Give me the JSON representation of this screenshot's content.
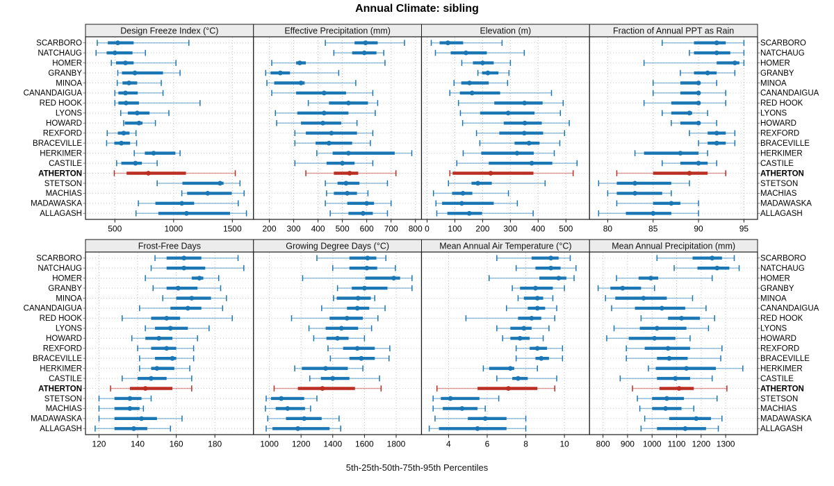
{
  "title": "Annual Climate: sibling",
  "xlabel": "5th-25th-50th-75th-95th Percentiles",
  "colors": {
    "blue": "#1b76b4",
    "red": "#bb2e22",
    "strip_bg": "#ececec",
    "panel_border": "#1a1a1a",
    "grid": "#bfbfbf",
    "row_guide": "#c9c9c9",
    "text": "#000000"
  },
  "chart_data": {
    "type": "scatter",
    "subtype": "trellis percentile interval dot plot (5th-25th-50th-75th-95th percentiles per station)",
    "legend_position": "none",
    "grid": "dotted",
    "percentile_labels": [
      "5th",
      "25th",
      "50th",
      "75th",
      "95th"
    ],
    "stations": [
      "SCARBORO",
      "NATCHAUG",
      "HOMER",
      "GRANBY",
      "MINOA",
      "CANANDAIGUA",
      "RED HOOK",
      "LYONS",
      "HOWARD",
      "REXFORD",
      "BRACEVILLE",
      "HERKIMER",
      "CASTILE",
      "ATHERTON",
      "STETSON",
      "MACHIAS",
      "MADAWASKA",
      "ALLAGASH"
    ],
    "highlight_station": "ATHERTON",
    "panels": [
      {
        "key": "design-freeze-index",
        "title": "Design Freeze Index (°C)",
        "row": 0,
        "ticks": [
          500,
          1000,
          1500
        ],
        "xlim": [
          250,
          1680
        ],
        "values": [
          [
            350,
            440,
            525,
            660,
            1130
          ],
          [
            340,
            430,
            500,
            650,
            760
          ],
          [
            470,
            510,
            590,
            660,
            1020
          ],
          [
            525,
            560,
            670,
            910,
            1055
          ],
          [
            520,
            565,
            620,
            690,
            895
          ],
          [
            500,
            530,
            590,
            695,
            910
          ],
          [
            500,
            530,
            595,
            705,
            1225
          ],
          [
            550,
            610,
            690,
            795,
            960
          ],
          [
            575,
            585,
            705,
            735,
            845
          ],
          [
            435,
            525,
            575,
            625,
            680
          ],
          [
            430,
            495,
            555,
            630,
            685
          ],
          [
            665,
            755,
            830,
            1015,
            1055
          ],
          [
            515,
            555,
            675,
            730,
            860
          ],
          [
            495,
            600,
            785,
            1105,
            1525
          ],
          [
            860,
            1075,
            1395,
            1425,
            1565
          ],
          [
            1070,
            1115,
            1290,
            1495,
            1600
          ],
          [
            700,
            845,
            1070,
            1175,
            1550
          ],
          [
            680,
            870,
            1110,
            1480,
            1620
          ]
        ]
      },
      {
        "key": "effective-precipitation",
        "title": "Effective Precipitation (mm)",
        "row": 0,
        "ticks": [
          200,
          300,
          400,
          500,
          600,
          700,
          800
        ],
        "xlim": [
          135,
          825
        ],
        "values": [
          [
            430,
            550,
            595,
            645,
            755
          ],
          [
            465,
            540,
            590,
            640,
            670
          ],
          [
            210,
            310,
            325,
            350,
            675
          ],
          [
            185,
            205,
            245,
            285,
            485
          ],
          [
            190,
            220,
            330,
            345,
            555
          ],
          [
            210,
            310,
            425,
            515,
            625
          ],
          [
            360,
            445,
            525,
            605,
            645
          ],
          [
            225,
            315,
            425,
            525,
            635
          ],
          [
            230,
            330,
            420,
            495,
            560
          ],
          [
            305,
            350,
            455,
            560,
            625
          ],
          [
            305,
            390,
            445,
            540,
            615
          ],
          [
            395,
            460,
            525,
            715,
            785
          ],
          [
            305,
            435,
            500,
            550,
            625
          ],
          [
            350,
            465,
            530,
            565,
            720
          ],
          [
            430,
            480,
            515,
            570,
            685
          ],
          [
            435,
            465,
            520,
            560,
            605
          ],
          [
            430,
            520,
            600,
            630,
            700
          ],
          [
            450,
            525,
            585,
            625,
            685
          ]
        ]
      },
      {
        "key": "elevation",
        "title": "Elevation (m)",
        "row": 0,
        "ticks": [
          0,
          100,
          200,
          300,
          400,
          500
        ],
        "xlim": [
          -20,
          585
        ],
        "values": [
          [
            15,
            45,
            75,
            130,
            270
          ],
          [
            30,
            85,
            140,
            215,
            350
          ],
          [
            125,
            165,
            200,
            240,
            300
          ],
          [
            183,
            198,
            219,
            257,
            295
          ],
          [
            97,
            123,
            153,
            222,
            290
          ],
          [
            82,
            118,
            162,
            263,
            448
          ],
          [
            113,
            242,
            351,
            416,
            490
          ],
          [
            120,
            191,
            292,
            387,
            480
          ],
          [
            128,
            276,
            352,
            413,
            512
          ],
          [
            178,
            260,
            350,
            418,
            495
          ],
          [
            190,
            315,
            367,
            405,
            478
          ],
          [
            130,
            195,
            324,
            384,
            458
          ],
          [
            107,
            222,
            377,
            451,
            540
          ],
          [
            82,
            92,
            229,
            383,
            526
          ],
          [
            77,
            160,
            183,
            233,
            425
          ],
          [
            23,
            90,
            129,
            163,
            293
          ],
          [
            32,
            54,
            125,
            240,
            325
          ],
          [
            35,
            73,
            152,
            198,
            382
          ]
        ]
      },
      {
        "key": "fraction-annual-ppt-rain",
        "title": "Fraction of Annual PPT as Rain",
        "row": 0,
        "ticks": [
          80,
          85,
          90,
          95
        ],
        "xlim": [
          78,
          96.5
        ],
        "values": [
          [
            86,
            89.5,
            92,
            93,
            95
          ],
          [
            89,
            89.5,
            92,
            93.5,
            95
          ],
          [
            84,
            92,
            94,
            94.5,
            95
          ],
          [
            88,
            89.5,
            91,
            92,
            94
          ],
          [
            85,
            88,
            90,
            90.2,
            92
          ],
          [
            85,
            88,
            90,
            90.2,
            93
          ],
          [
            84,
            87,
            90,
            90.2,
            93
          ],
          [
            86,
            87,
            89,
            89.3,
            91
          ],
          [
            87,
            88,
            90,
            90.2,
            92
          ],
          [
            89,
            91,
            92,
            93,
            94
          ],
          [
            90,
            91,
            92,
            93,
            94
          ],
          [
            83,
            84,
            88,
            90,
            91
          ],
          [
            86,
            88,
            90,
            91,
            92
          ],
          [
            81,
            85,
            89,
            91,
            93
          ],
          [
            79,
            81,
            83,
            87,
            89
          ],
          [
            80,
            81,
            83,
            86,
            87
          ],
          [
            81,
            85,
            87,
            88,
            90
          ],
          [
            79,
            82,
            85,
            87,
            90
          ]
        ]
      },
      {
        "key": "frost-free-days",
        "title": "Frost-Free Days",
        "row": 1,
        "ticks": [
          120,
          140,
          160,
          180
        ],
        "xlim": [
          113,
          200
        ],
        "values": [
          [
            149,
            155,
            164,
            173,
            192
          ],
          [
            147,
            155,
            164,
            175,
            195
          ],
          [
            144,
            168,
            172,
            174,
            182
          ],
          [
            148,
            155,
            161,
            171,
            183
          ],
          [
            153,
            160,
            168,
            178,
            186
          ],
          [
            141,
            157,
            166,
            173,
            184
          ],
          [
            132,
            147,
            155,
            162,
            189
          ],
          [
            144,
            149,
            157,
            166,
            177
          ],
          [
            137,
            144,
            151,
            158,
            171
          ],
          [
            140,
            147,
            155,
            160,
            169
          ],
          [
            141,
            149,
            158,
            160,
            169
          ],
          [
            141,
            147,
            150,
            159,
            167
          ],
          [
            132,
            140,
            147,
            155,
            168
          ],
          [
            126,
            136,
            144,
            158,
            168
          ],
          [
            120,
            128,
            136,
            142,
            147
          ],
          [
            120,
            128,
            136,
            141,
            143
          ],
          [
            120,
            128,
            142,
            150,
            163
          ],
          [
            118,
            128,
            138,
            145,
            157
          ]
        ]
      },
      {
        "key": "growing-degree-days",
        "title": "Growing Degree Days (°C)",
        "row": 1,
        "ticks": [
          1000,
          1200,
          1400,
          1600,
          1800
        ],
        "xlim": [
          900,
          1960
        ],
        "values": [
          [
            1300,
            1505,
            1620,
            1675,
            1735
          ],
          [
            1400,
            1505,
            1615,
            1680,
            1795
          ],
          [
            1210,
            1605,
            1785,
            1825,
            1900
          ],
          [
            1430,
            1520,
            1600,
            1745,
            1900
          ],
          [
            1405,
            1425,
            1560,
            1640,
            1665
          ],
          [
            1330,
            1490,
            1555,
            1630,
            1730
          ],
          [
            1140,
            1380,
            1490,
            1590,
            1685
          ],
          [
            1250,
            1355,
            1455,
            1560,
            1645
          ],
          [
            1280,
            1360,
            1430,
            1500,
            1600
          ],
          [
            1370,
            1465,
            1555,
            1665,
            1760
          ],
          [
            1385,
            1505,
            1580,
            1665,
            1755
          ],
          [
            1160,
            1205,
            1355,
            1495,
            1590
          ],
          [
            1255,
            1325,
            1400,
            1505,
            1695
          ],
          [
            1030,
            1180,
            1335,
            1540,
            1705
          ],
          [
            980,
            1010,
            1075,
            1220,
            1300
          ],
          [
            975,
            1040,
            1115,
            1225,
            1260
          ],
          [
            990,
            1105,
            1220,
            1330,
            1440
          ],
          [
            980,
            1020,
            1180,
            1380,
            1450
          ]
        ]
      },
      {
        "key": "mean-annual-air-temperature",
        "title": "Mean Annual Air Temperature (°C)",
        "row": 1,
        "ticks": [
          4,
          6,
          8,
          10
        ],
        "xlim": [
          2.6,
          11.3
        ],
        "values": [
          [
            6.5,
            8.3,
            9.3,
            9.7,
            10.3
          ],
          [
            7.5,
            8.5,
            9.3,
            9.8,
            10.6
          ],
          [
            6.1,
            8.7,
            9.7,
            10.1,
            10.5
          ],
          [
            7.3,
            7.7,
            8.5,
            9.4,
            10.0
          ],
          [
            7.6,
            7.9,
            8.6,
            8.9,
            9.4
          ],
          [
            7.0,
            8.1,
            8.6,
            9.0,
            9.6
          ],
          [
            4.9,
            7.6,
            8.3,
            8.8,
            9.5
          ],
          [
            6.5,
            7.2,
            7.9,
            8.3,
            9.2
          ],
          [
            6.8,
            7.2,
            7.7,
            8.2,
            8.9
          ],
          [
            7.5,
            8.2,
            8.6,
            9.1,
            9.9
          ],
          [
            7.5,
            8.5,
            8.8,
            9.2,
            9.9
          ],
          [
            5.8,
            6.1,
            7.2,
            7.4,
            8.6
          ],
          [
            6.5,
            7.3,
            7.6,
            8.1,
            9.6
          ],
          [
            3.4,
            5.5,
            7.1,
            8.6,
            9.5
          ],
          [
            3.2,
            3.6,
            4.1,
            5.6,
            6.6
          ],
          [
            3.2,
            3.7,
            4.7,
            5.5,
            5.9
          ],
          [
            3.3,
            5.0,
            5.9,
            7.0,
            8.0
          ],
          [
            3.0,
            3.5,
            5.5,
            7.0,
            8.0
          ]
        ]
      },
      {
        "key": "mean-annual-precipitation",
        "title": "Mean Annual Precipitation (mm)",
        "row": 1,
        "ticks": [
          800,
          900,
          1000,
          1100,
          1200,
          1300
        ],
        "xlim": [
          745,
          1430
        ],
        "values": [
          [
            1020,
            1165,
            1245,
            1285,
            1335
          ],
          [
            1090,
            1185,
            1265,
            1315,
            1355
          ],
          [
            855,
            945,
            995,
            1025,
            1245
          ],
          [
            780,
            830,
            880,
            955,
            1010
          ],
          [
            810,
            850,
            965,
            1060,
            1165
          ],
          [
            835,
            930,
            1040,
            1135,
            1220
          ],
          [
            955,
            1065,
            1120,
            1195,
            1255
          ],
          [
            845,
            950,
            1020,
            1140,
            1230
          ],
          [
            815,
            905,
            1010,
            1095,
            1155
          ],
          [
            895,
            970,
            1065,
            1155,
            1285
          ],
          [
            895,
            1020,
            1070,
            1145,
            1280
          ],
          [
            985,
            1015,
            1140,
            1260,
            1370
          ],
          [
            870,
            1020,
            1095,
            1155,
            1245
          ],
          [
            920,
            1030,
            1110,
            1170,
            1305
          ],
          [
            940,
            1000,
            1060,
            1130,
            1265
          ],
          [
            950,
            1000,
            1055,
            1120,
            1170
          ],
          [
            970,
            1070,
            1180,
            1240,
            1285
          ],
          [
            955,
            1020,
            1135,
            1220,
            1270
          ]
        ]
      }
    ]
  }
}
